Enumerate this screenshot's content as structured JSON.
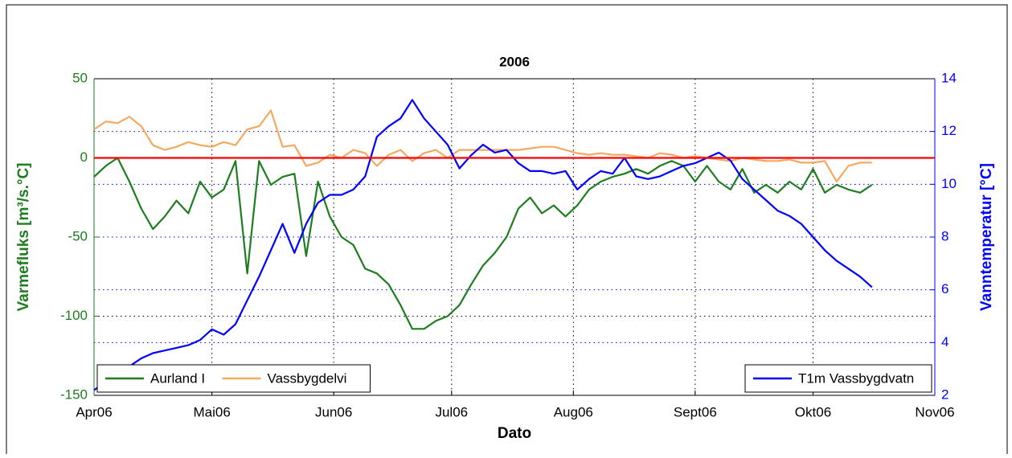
{
  "chart_data": {
    "type": "line",
    "title": "2006",
    "xlabel": "Dato",
    "ylabel": "Varmefluks [m³/s.°C]",
    "y2label": "Vanntemperatur [°C]",
    "xlim": [
      0,
      214
    ],
    "xticks": [
      {
        "value": 0,
        "label": "Apr06"
      },
      {
        "value": 30,
        "label": "Mai06"
      },
      {
        "value": 61,
        "label": "Jun06"
      },
      {
        "value": 91,
        "label": "Jul06"
      },
      {
        "value": 122,
        "label": "Aug06"
      },
      {
        "value": 153,
        "label": "Sept06"
      },
      {
        "value": 183,
        "label": "Okt06"
      },
      {
        "value": 214,
        "label": "Nov06"
      }
    ],
    "ylim": [
      -150,
      50
    ],
    "yticks": [
      -150,
      -100,
      -50,
      0,
      50
    ],
    "y2lim": [
      2,
      14
    ],
    "y2ticks": [
      2,
      4,
      6,
      8,
      10,
      12,
      14
    ],
    "grid": true,
    "legend_loc": "lower left",
    "legend2_loc": "lower right",
    "hline": {
      "value": 0,
      "color": "#ff0000"
    },
    "x": [
      0,
      3,
      6,
      9,
      12,
      15,
      18,
      21,
      24,
      27,
      30,
      33,
      36,
      39,
      42,
      45,
      48,
      51,
      54,
      57,
      60,
      63,
      66,
      69,
      72,
      75,
      78,
      81,
      84,
      87,
      90,
      93,
      96,
      99,
      102,
      105,
      108,
      111,
      114,
      117,
      120,
      123,
      126,
      129,
      132,
      135,
      138,
      141,
      144,
      147,
      150,
      153,
      156,
      159,
      162,
      165,
      168,
      171,
      174,
      177,
      180,
      183,
      186,
      189,
      192,
      195,
      198
    ],
    "series": [
      {
        "name": "Aurland I",
        "color": "#1e7d1e",
        "axis": "y",
        "values": [
          -12,
          -5,
          0,
          -15,
          -32,
          -45,
          -37,
          -27,
          -35,
          -15,
          -25,
          -20,
          -2,
          -73,
          -2,
          -17,
          -12,
          -10,
          -62,
          -15,
          -37,
          -50,
          -55,
          -70,
          -73,
          -80,
          -93,
          -108,
          -108,
          -103,
          -100,
          -93,
          -80,
          -68,
          -60,
          -50,
          -32,
          -25,
          -35,
          -30,
          -37,
          -30,
          -20,
          -15,
          -12,
          -10,
          -7,
          -10,
          -5,
          -2,
          -5,
          -15,
          -5,
          -15,
          -20,
          -7,
          -22,
          -17,
          -22,
          -15,
          -20,
          -7,
          -22,
          -17,
          -20,
          -22,
          -17
        ]
      },
      {
        "name": "Vassbygdelvi",
        "color": "#f5a860",
        "axis": "y",
        "values": [
          18,
          23,
          22,
          26,
          20,
          8,
          5,
          7,
          10,
          8,
          7,
          10,
          8,
          18,
          20,
          30,
          7,
          8,
          -5,
          -3,
          2,
          0,
          5,
          3,
          -5,
          2,
          5,
          -2,
          3,
          5,
          0,
          5,
          5,
          5,
          5,
          5,
          5,
          6,
          7,
          7,
          5,
          3,
          2,
          3,
          2,
          2,
          1,
          0,
          3,
          2,
          0,
          1,
          0,
          -1,
          -2,
          0,
          -1,
          -2,
          -2,
          -1,
          -3,
          -3,
          -2,
          -15,
          -5,
          -3,
          -3
        ]
      },
      {
        "name": "T1m Vassbygdvatn",
        "color": "#0000ff",
        "axis": "y2",
        "values": [
          2.2,
          2.5,
          2.8,
          3.1,
          3.4,
          3.6,
          3.7,
          3.8,
          3.9,
          4.1,
          4.5,
          4.3,
          4.7,
          5.6,
          6.5,
          7.5,
          8.5,
          7.4,
          8.5,
          9.3,
          9.6,
          9.6,
          9.8,
          10.3,
          11.8,
          12.2,
          12.5,
          13.2,
          12.5,
          12.0,
          11.5,
          10.6,
          11.1,
          11.5,
          11.2,
          11.3,
          10.8,
          10.5,
          10.5,
          10.4,
          10.5,
          9.8,
          10.2,
          10.5,
          10.4,
          11.0,
          10.3,
          10.2,
          10.3,
          10.5,
          10.7,
          10.8,
          11.0,
          11.2,
          10.9,
          10.2,
          9.8,
          9.4,
          9.0,
          8.8,
          8.5,
          8.0,
          7.5,
          7.1,
          6.8,
          6.5,
          6.1
        ]
      }
    ]
  }
}
